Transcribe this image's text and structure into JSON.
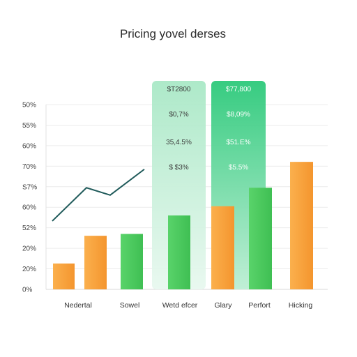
{
  "chart_data": {
    "type": "bar",
    "title": "Pricing yovel derses",
    "xlabel": "",
    "ylabel": "",
    "y_tick_labels": [
      "0%",
      "20%",
      "20%",
      "52%",
      "60%",
      "S7%",
      "70%",
      "60%",
      "55%",
      "50%"
    ],
    "categories": [
      "Nedertal",
      "Sowel",
      "Wetd efcer",
      "Glary",
      "Perfort",
      "Hicking"
    ],
    "bars": [
      {
        "category": "Nedertal",
        "value": 14,
        "color": "orange"
      },
      {
        "category": "Nedertal",
        "value": 29,
        "color": "orange"
      },
      {
        "category": "Sowel",
        "value": 30,
        "color": "green"
      },
      {
        "category": "Wetd efcer",
        "value": 40,
        "color": "green"
      },
      {
        "category": "Glary",
        "value": 45,
        "color": "orange"
      },
      {
        "category": "Perfort",
        "value": 55,
        "color": "green"
      },
      {
        "category": "Hicking",
        "value": 69,
        "color": "orange"
      }
    ],
    "line_series": {
      "values": [
        37,
        55,
        51,
        65
      ]
    },
    "highlight_panels": [
      {
        "category": "Wetd efcer",
        "labels": [
          "$T2800",
          "$0,7%",
          "35,4.5%",
          "$ $3%"
        ],
        "color": "#b9ecd3"
      },
      {
        "category": "Glary",
        "labels": [
          "$77,800",
          "$8,09%",
          "$51.E%",
          "$5.5%"
        ],
        "color": "#39cf82"
      }
    ],
    "ylim": [
      0,
      100
    ],
    "grid": true,
    "colors": {
      "orange": "#f9a33f",
      "green": "#4ecb5e",
      "line": "#1f5a5a",
      "grid": "#ececec"
    }
  }
}
